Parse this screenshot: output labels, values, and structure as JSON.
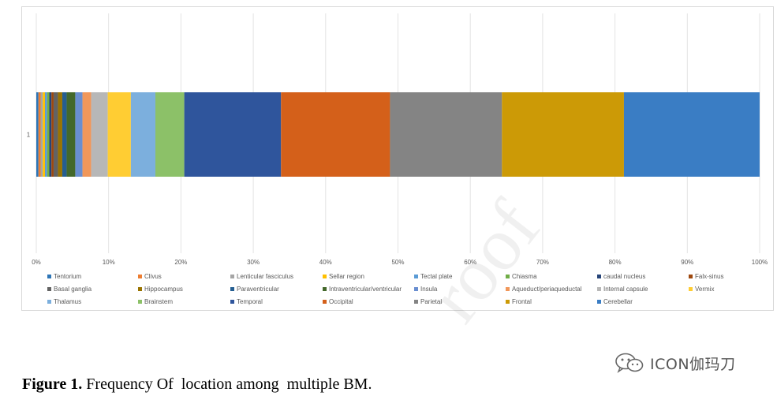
{
  "chart_data": {
    "type": "bar",
    "orientation": "horizontal",
    "stacked": "percent",
    "categories": [
      "1"
    ],
    "xlim": [
      0,
      100
    ],
    "x_ticks": [
      "0%",
      "10%",
      "20%",
      "30%",
      "40%",
      "50%",
      "60%",
      "70%",
      "80%",
      "90%",
      "100%"
    ],
    "grid": "vertical",
    "legend_position": "bottom",
    "series": [
      {
        "name": "Tentorium",
        "values": [
          0.3
        ],
        "color": "#2e75b6"
      },
      {
        "name": "Clivus",
        "values": [
          0.3
        ],
        "color": "#ed7d31"
      },
      {
        "name": "Lenticular fasciculus",
        "values": [
          0.3
        ],
        "color": "#a5a5a5"
      },
      {
        "name": "Sellar region",
        "values": [
          0.3
        ],
        "color": "#ffc000"
      },
      {
        "name": "Tectal plate",
        "values": [
          0.3
        ],
        "color": "#5b9bd5"
      },
      {
        "name": "Chiasma",
        "values": [
          0.3
        ],
        "color": "#70ad47"
      },
      {
        "name": "caudal nucleus",
        "values": [
          0.3
        ],
        "color": "#264478"
      },
      {
        "name": "Falx-sinus",
        "values": [
          0.3
        ],
        "color": "#9e480e"
      },
      {
        "name": "Basal ganglia",
        "values": [
          0.6
        ],
        "color": "#636363"
      },
      {
        "name": "Hippocampus",
        "values": [
          0.6
        ],
        "color": "#997300"
      },
      {
        "name": "Paraventricular",
        "values": [
          0.6
        ],
        "color": "#255e91"
      },
      {
        "name": "Intraventricular/ventricular",
        "values": [
          1.2
        ],
        "color": "#43682b"
      },
      {
        "name": "Insula",
        "values": [
          1.0
        ],
        "color": "#698ed0"
      },
      {
        "name": "Aqueduct/periaqueductal",
        "values": [
          1.2
        ],
        "color": "#f1975a"
      },
      {
        "name": "Internal capsule",
        "values": [
          2.3
        ],
        "color": "#b7b7b7"
      },
      {
        "name": "Vermix",
        "values": [
          3.2
        ],
        "color": "#ffcd33"
      },
      {
        "name": "Thalamus",
        "values": [
          3.4
        ],
        "color": "#7cafdd"
      },
      {
        "name": "Brainstem",
        "values": [
          4.0
        ],
        "color": "#8cc168"
      },
      {
        "name": "Temporal",
        "values": [
          13.4
        ],
        "color": "#2f559c"
      },
      {
        "name": "Occipital",
        "values": [
          15.1
        ],
        "color": "#d4601a"
      },
      {
        "name": "Parietal",
        "values": [
          15.5
        ],
        "color": "#848484"
      },
      {
        "name": "Frontal",
        "values": [
          16.9
        ],
        "color": "#cc9a06"
      },
      {
        "name": "Cerebellar",
        "values": [
          18.8
        ],
        "color": "#3a7dc4"
      }
    ]
  },
  "caption": {
    "label": "Figure 1.",
    "text": " Frequency Of  location among  multiple BM."
  },
  "watermark": {
    "text": "ICON伽玛刀",
    "proof_text": "roof"
  }
}
